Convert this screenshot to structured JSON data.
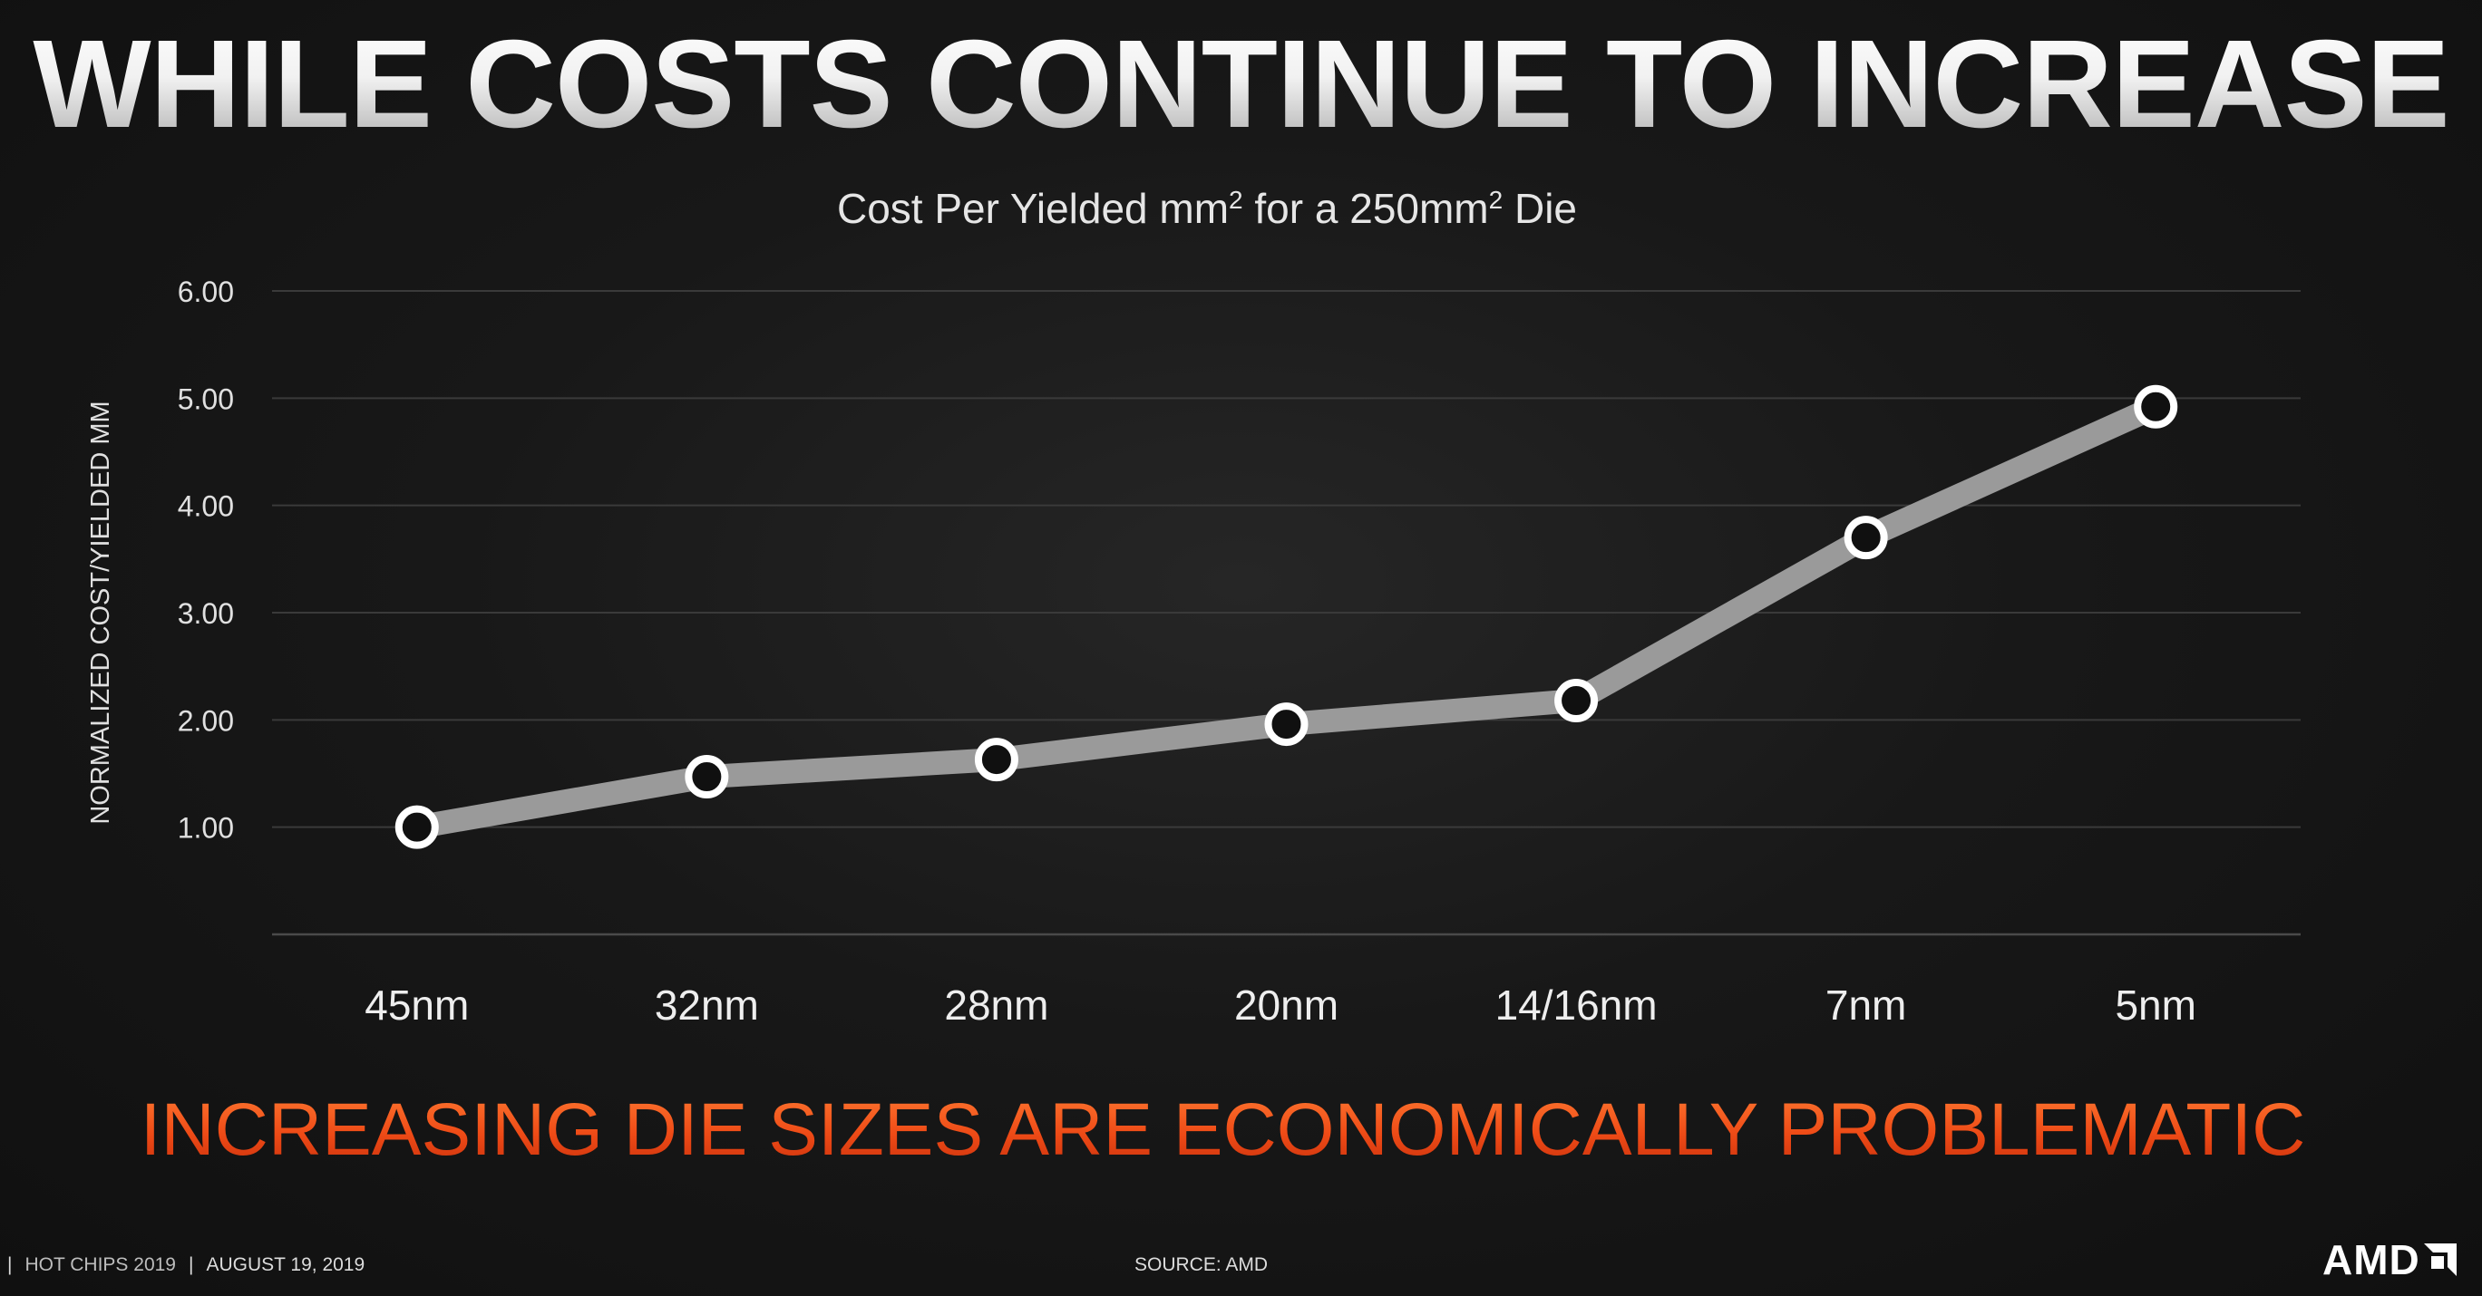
{
  "slide": {
    "title": "WHILE COSTS CONTINUE TO INCREASE",
    "tagline": "INCREASING DIE SIZES ARE ECONOMICALLY PROBLEMATIC",
    "footer": {
      "event": "HOT CHIPS 2019",
      "date": "AUGUST 19, 2019",
      "separator": "|",
      "source": "SOURCE: AMD"
    },
    "logo_text": "AMD",
    "colors": {
      "background": "#141414",
      "line": "#9a9a9a",
      "marker_fill": "#101010",
      "marker_stroke": "#ffffff",
      "tagline": "#f04a17",
      "grid": "#3a3a3a"
    }
  },
  "chart_data": {
    "type": "line",
    "title": "Cost Per Yielded mm² for a 250mm² Die",
    "title_parts": {
      "pre": "Cost Per Yielded mm",
      "sup1": "2",
      "mid": " for a 250mm",
      "sup2": "2",
      "post": " Die"
    },
    "xlabel": "",
    "ylabel": "NORMALIZED COST/YIELDED MM",
    "categories": [
      "45nm",
      "32nm",
      "28nm",
      "20nm",
      "14/16nm",
      "7nm",
      "5nm"
    ],
    "values": [
      1.0,
      1.47,
      1.63,
      1.96,
      2.18,
      3.7,
      4.92
    ],
    "yticks": [
      "6.00",
      "5.00",
      "4.00",
      "3.00",
      "2.00",
      "1.00"
    ],
    "ylim": [
      0,
      6
    ],
    "grid": true,
    "legend": "none"
  }
}
